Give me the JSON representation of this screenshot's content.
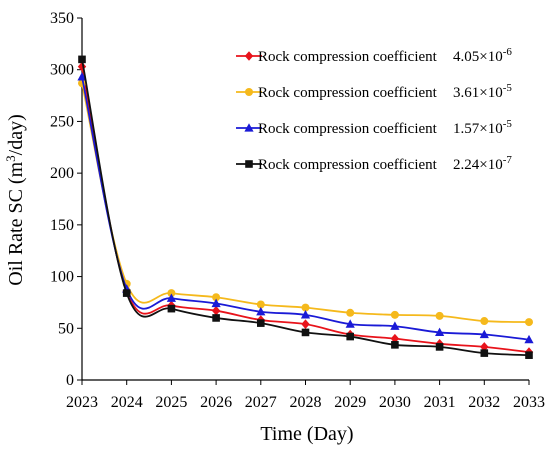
{
  "chart_data": {
    "type": "line",
    "title": "",
    "xlabel": "Time (Day)",
    "ylabel": {
      "main": "Oil Rate SC (m",
      "sup": "3",
      "tail": "/day)"
    },
    "x": [
      2023,
      2024,
      2025,
      2026,
      2027,
      2028,
      2029,
      2030,
      2031,
      2032,
      2033
    ],
    "xlim": [
      2023,
      2033
    ],
    "ylim": [
      0,
      350
    ],
    "yticks": [
      0,
      50,
      100,
      150,
      200,
      250,
      300,
      350
    ],
    "grid": false,
    "legend_position": "top-right",
    "series": [
      {
        "name": "Rock compression coefficient",
        "value_text": "4.05×10",
        "exponent": "-6",
        "color": "#e8131b",
        "marker": "diamond",
        "values": [
          303,
          86,
          72,
          67,
          58,
          54,
          44,
          40,
          35,
          32,
          27
        ]
      },
      {
        "name": "Rock compression coefficient",
        "value_text": "3.61×10",
        "exponent": "-5",
        "color": "#f5b91c",
        "marker": "circle",
        "values": [
          287,
          93,
          84,
          80,
          73,
          70,
          65,
          63,
          62,
          57,
          56
        ]
      },
      {
        "name": "Rock compression coefficient",
        "value_text": "1.57×10",
        "exponent": "-5",
        "color": "#1a1ad6",
        "marker": "triangle",
        "values": [
          293,
          88,
          79,
          74,
          66,
          63,
          54,
          52,
          46,
          44,
          39
        ]
      },
      {
        "name": "Rock compression coefficient",
        "value_text": "2.24×10",
        "exponent": "-7",
        "color": "#111111",
        "marker": "square",
        "values": [
          310,
          84,
          69,
          60,
          55,
          46,
          42,
          34,
          32,
          26,
          24
        ]
      }
    ]
  }
}
